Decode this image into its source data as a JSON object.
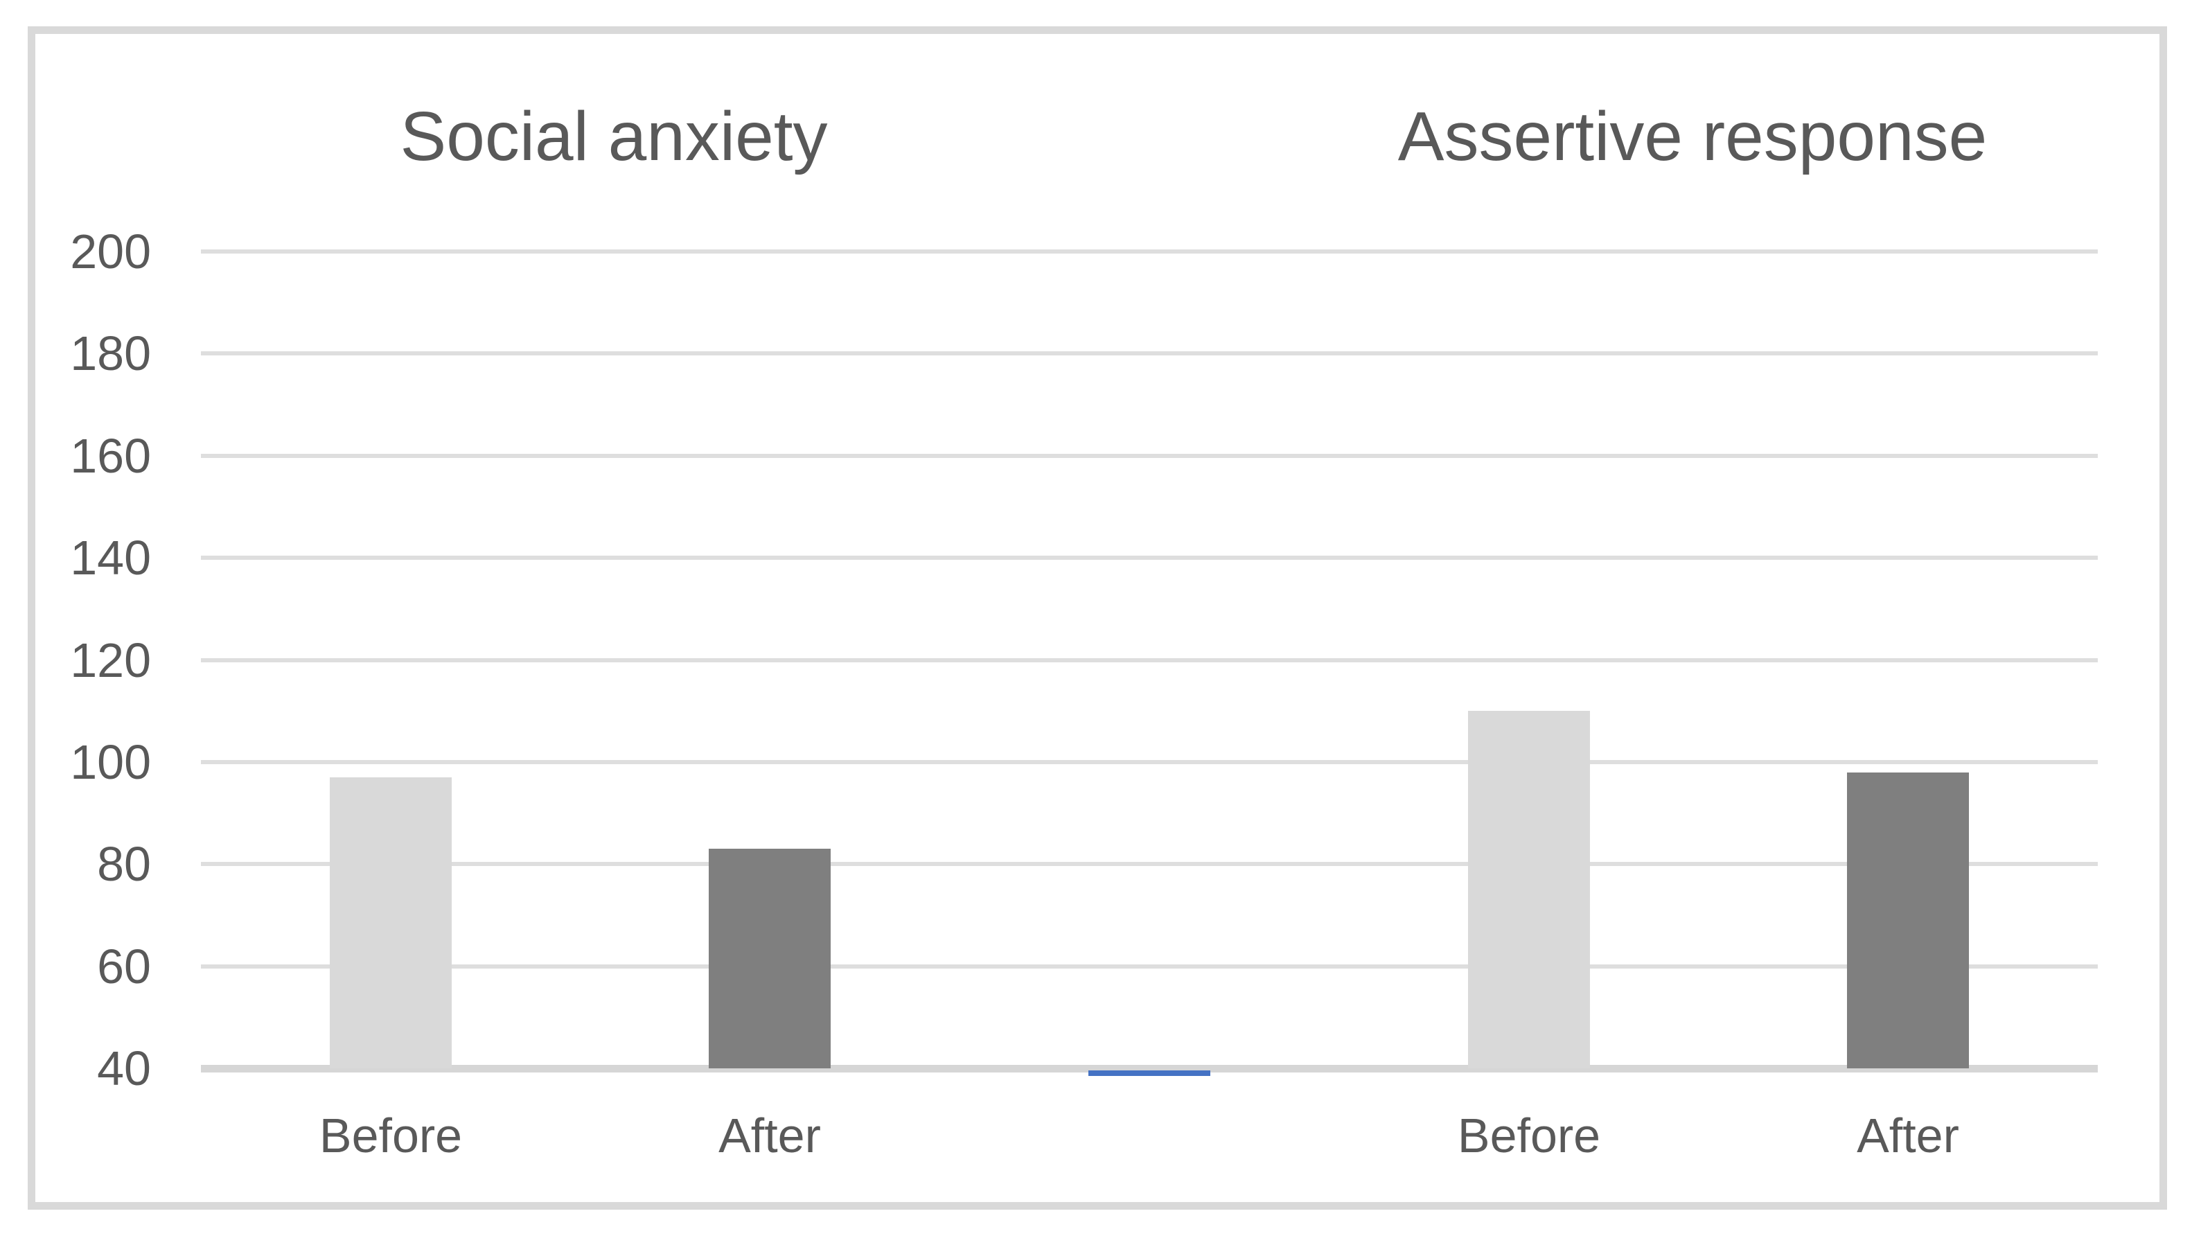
{
  "chart_data": {
    "type": "bar",
    "panel_titles": [
      "Social anxiety",
      "Assertive response"
    ],
    "categories": [
      "Before",
      "After",
      "",
      "Before",
      "After"
    ],
    "series": [
      {
        "name": "score",
        "values": [
          97,
          83,
          null,
          110,
          98
        ]
      }
    ],
    "bar_styles": [
      "light",
      "dark",
      null,
      "light",
      "dark"
    ],
    "y_ticks": [
      200,
      180,
      160,
      140,
      120,
      100,
      80,
      60,
      40
    ],
    "ylim": [
      40,
      200
    ],
    "grid": true,
    "legend": "none",
    "baseline_marker": {
      "category_index": 2,
      "value": 40,
      "color": "#4472c4"
    },
    "colors": {
      "bar_light": "#d9d9d9",
      "bar_dark": "#7f7f7f",
      "text": "#595959",
      "gridline": "#dedede",
      "axis_line": "#d6d6d6",
      "frame_border": "#d9d9d9",
      "marker_blue": "#4472c4"
    }
  }
}
